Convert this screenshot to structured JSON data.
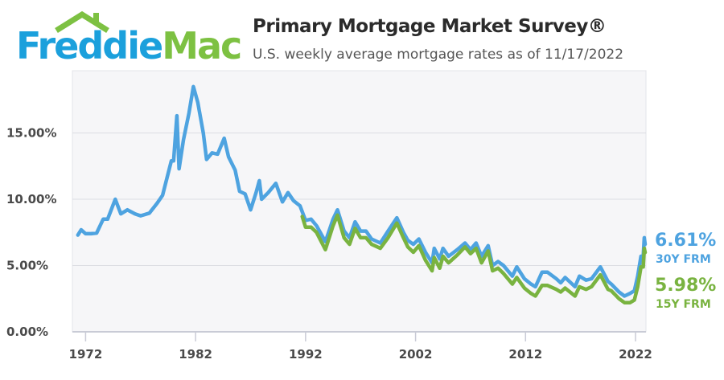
{
  "logo": {
    "text_a": "Freddie",
    "text_b": "Mac"
  },
  "header": {
    "title": "Primary Mortgage Market Survey®",
    "subtitle": "U.S. weekly average mortgage rates as of 11/17/2022"
  },
  "colors": {
    "thirty": "#4ea3e0",
    "fifteen": "#79b340",
    "logo_blue": "#1ba0dc",
    "logo_green": "#7dc142"
  },
  "chart_data": {
    "type": "line",
    "title": "Primary Mortgage Market Survey®",
    "subtitle": "U.S. weekly average mortgage rates as of 11/17/2022",
    "xlim": [
      1970.8,
      2022.95
    ],
    "ylim": [
      0,
      19.7
    ],
    "x_ticks": [
      1972,
      1982,
      1992,
      2002,
      2012,
      2022
    ],
    "x_tick_labels": [
      "1972",
      "1982",
      "1992",
      "2002",
      "2012",
      "2022"
    ],
    "y_ticks": [
      0,
      5,
      10,
      15
    ],
    "y_tick_labels": [
      "0.00%",
      "5.00%",
      "10.00%",
      "15.00%"
    ],
    "grid": "horizontal",
    "series": [
      {
        "name": "30Y FRM",
        "latest_label": "6.61%",
        "color": "#4ea3e0",
        "x": [
          1971.3,
          1971.6,
          1972.0,
          1972.5,
          1973.0,
          1973.6,
          1974.0,
          1974.7,
          1975.2,
          1975.8,
          1976.5,
          1977.0,
          1977.8,
          1978.5,
          1979.0,
          1979.8,
          1980.0,
          1980.3,
          1980.5,
          1980.9,
          1981.4,
          1981.8,
          1982.2,
          1982.7,
          1983.0,
          1983.5,
          1984.0,
          1984.6,
          1985.0,
          1985.6,
          1986.0,
          1986.5,
          1987.0,
          1987.5,
          1987.8,
          1988.0,
          1988.6,
          1989.3,
          1989.9,
          1990.4,
          1990.9,
          1991.5,
          1992.0,
          1992.5,
          1993.0,
          1993.8,
          1994.5,
          1994.9,
          1995.5,
          1996.0,
          1996.5,
          1997.0,
          1997.5,
          1998.0,
          1998.8,
          1999.5,
          2000.3,
          2000.9,
          2001.3,
          2001.8,
          2002.3,
          2002.9,
          2003.5,
          2003.7,
          2004.2,
          2004.5,
          2005.0,
          2005.8,
          2006.5,
          2007.0,
          2007.5,
          2008.0,
          2008.6,
          2009.0,
          2009.5,
          2010.0,
          2010.8,
          2011.2,
          2011.9,
          2012.5,
          2012.9,
          2013.5,
          2014.0,
          2014.8,
          2015.2,
          2015.6,
          2016.5,
          2016.9,
          2017.5,
          2018.0,
          2018.8,
          2019.5,
          2019.8,
          2020.5,
          2021.0,
          2021.5,
          2021.9,
          2022.2,
          2022.5,
          2022.7,
          2022.8,
          2022.88
        ],
        "y": [
          7.3,
          7.7,
          7.4,
          7.4,
          7.45,
          8.5,
          8.5,
          10.0,
          8.9,
          9.2,
          8.9,
          8.75,
          8.95,
          9.7,
          10.3,
          12.9,
          12.9,
          16.3,
          12.3,
          14.5,
          16.5,
          18.5,
          17.3,
          15.0,
          13.0,
          13.5,
          13.4,
          14.6,
          13.2,
          12.2,
          10.6,
          10.4,
          9.2,
          10.5,
          11.4,
          10.0,
          10.5,
          11.2,
          9.8,
          10.5,
          9.9,
          9.5,
          8.4,
          8.5,
          8.0,
          6.8,
          8.5,
          9.2,
          7.6,
          7.1,
          8.3,
          7.6,
          7.6,
          7.0,
          6.7,
          7.6,
          8.6,
          7.5,
          6.9,
          6.6,
          7.0,
          6.0,
          5.2,
          6.3,
          5.5,
          6.3,
          5.7,
          6.2,
          6.7,
          6.2,
          6.7,
          5.7,
          6.5,
          5.0,
          5.3,
          5.0,
          4.2,
          4.9,
          4.0,
          3.6,
          3.4,
          4.5,
          4.5,
          4.0,
          3.7,
          4.1,
          3.4,
          4.2,
          3.9,
          4.0,
          4.9,
          3.8,
          3.6,
          3.0,
          2.7,
          2.9,
          3.1,
          4.2,
          5.7,
          5.7,
          7.1,
          6.61
        ]
      },
      {
        "name": "15Y FRM",
        "latest_label": "5.98%",
        "color": "#79b340",
        "x": [
          1991.7,
          1992.0,
          1992.5,
          1993.0,
          1993.8,
          1994.5,
          1994.9,
          1995.5,
          1996.0,
          1996.5,
          1997.0,
          1997.5,
          1998.0,
          1998.8,
          1999.5,
          2000.3,
          2000.9,
          2001.3,
          2001.8,
          2002.3,
          2002.9,
          2003.5,
          2003.7,
          2004.2,
          2004.5,
          2005.0,
          2005.8,
          2006.5,
          2007.0,
          2007.5,
          2008.0,
          2008.6,
          2009.0,
          2009.5,
          2010.0,
          2010.8,
          2011.2,
          2011.9,
          2012.5,
          2012.9,
          2013.5,
          2014.0,
          2014.8,
          2015.2,
          2015.6,
          2016.5,
          2016.9,
          2017.5,
          2018.0,
          2018.8,
          2019.5,
          2019.8,
          2020.5,
          2021.0,
          2021.5,
          2021.9,
          2022.2,
          2022.5,
          2022.7,
          2022.8,
          2022.88
        ],
        "y": [
          8.7,
          7.9,
          7.9,
          7.5,
          6.2,
          8.0,
          8.8,
          7.1,
          6.6,
          7.8,
          7.1,
          7.1,
          6.6,
          6.3,
          7.1,
          8.2,
          7.1,
          6.4,
          6.0,
          6.5,
          5.4,
          4.6,
          5.6,
          4.8,
          5.7,
          5.2,
          5.8,
          6.4,
          5.9,
          6.3,
          5.2,
          6.1,
          4.6,
          4.8,
          4.4,
          3.6,
          4.1,
          3.3,
          2.9,
          2.7,
          3.5,
          3.5,
          3.2,
          3.0,
          3.3,
          2.7,
          3.4,
          3.2,
          3.4,
          4.3,
          3.2,
          3.1,
          2.5,
          2.2,
          2.2,
          2.4,
          3.4,
          4.9,
          4.9,
          6.3,
          5.98
        ]
      }
    ]
  }
}
